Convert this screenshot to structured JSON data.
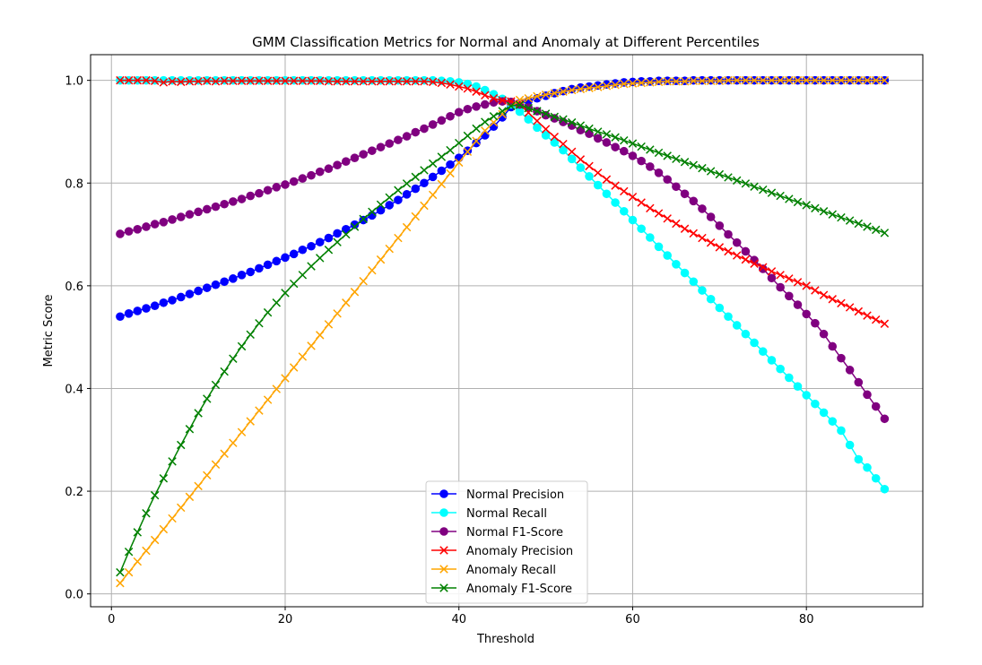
{
  "chart_data": {
    "type": "line",
    "title": "GMM Classification Metrics for Normal and Anomaly at Different Percentiles",
    "xlabel": "Threshold",
    "ylabel": "Metric Score",
    "xlim": [
      -2.4,
      93.4
    ],
    "ylim": [
      -0.025,
      1.05
    ],
    "xticks": [
      0,
      20,
      40,
      60,
      80
    ],
    "yticks": [
      0.0,
      0.2,
      0.4,
      0.6,
      0.8,
      1.0
    ],
    "xtick_labels": [
      "0",
      "20",
      "40",
      "60",
      "80"
    ],
    "ytick_labels": [
      "0.0",
      "0.2",
      "0.4",
      "0.6",
      "0.8",
      "1.0"
    ],
    "grid": true,
    "legend_position": "lower center",
    "x": [
      1,
      2,
      3,
      4,
      5,
      6,
      7,
      8,
      9,
      10,
      11,
      12,
      13,
      14,
      15,
      16,
      17,
      18,
      19,
      20,
      21,
      22,
      23,
      24,
      25,
      26,
      27,
      28,
      29,
      30,
      31,
      32,
      33,
      34,
      35,
      36,
      37,
      38,
      39,
      40,
      41,
      42,
      43,
      44,
      45,
      46,
      47,
      48,
      49,
      50,
      51,
      52,
      53,
      54,
      55,
      56,
      57,
      58,
      59,
      60,
      61,
      62,
      63,
      64,
      65,
      66,
      67,
      68,
      69,
      70,
      71,
      72,
      73,
      74,
      75,
      76,
      77,
      78,
      79,
      80,
      81,
      82,
      83,
      84,
      85,
      86,
      87,
      88,
      89
    ],
    "series": [
      {
        "name": "Normal Precision",
        "color": "#0000ff",
        "marker": "circle",
        "values": [
          0.54,
          0.546,
          0.551,
          0.556,
          0.561,
          0.567,
          0.572,
          0.578,
          0.584,
          0.59,
          0.596,
          0.602,
          0.608,
          0.614,
          0.621,
          0.627,
          0.634,
          0.641,
          0.648,
          0.655,
          0.662,
          0.67,
          0.677,
          0.685,
          0.693,
          0.702,
          0.71,
          0.719,
          0.728,
          0.737,
          0.747,
          0.757,
          0.767,
          0.778,
          0.789,
          0.8,
          0.812,
          0.824,
          0.836,
          0.849,
          0.863,
          0.878,
          0.893,
          0.91,
          0.928,
          0.948,
          0.955,
          0.96,
          0.965,
          0.97,
          0.975,
          0.979,
          0.983,
          0.986,
          0.988,
          0.99,
          0.992,
          0.994,
          0.996,
          0.997,
          0.998,
          0.998,
          0.999,
          0.999,
          0.999,
          0.999,
          1.0,
          1.0,
          1.0,
          1.0,
          1.0,
          1.0,
          1.0,
          1.0,
          1.0,
          1.0,
          1.0,
          1.0,
          1.0,
          1.0,
          1.0,
          1.0,
          1.0,
          1.0,
          1.0,
          1.0,
          1.0,
          1.0,
          1.0
        ]
      },
      {
        "name": "Normal Recall",
        "color": "#00ffff",
        "marker": "circle",
        "values": [
          1.0,
          1.0,
          1.0,
          1.0,
          1.0,
          1.0,
          1.0,
          1.0,
          1.0,
          1.0,
          1.0,
          1.0,
          1.0,
          1.0,
          1.0,
          1.0,
          1.0,
          1.0,
          1.0,
          1.0,
          1.0,
          1.0,
          1.0,
          1.0,
          1.0,
          1.0,
          1.0,
          1.0,
          1.0,
          1.0,
          1.0,
          1.0,
          1.0,
          1.0,
          1.0,
          1.0,
          1.0,
          0.999,
          0.998,
          0.996,
          0.993,
          0.988,
          0.981,
          0.973,
          0.964,
          0.953,
          0.939,
          0.924,
          0.908,
          0.893,
          0.879,
          0.864,
          0.847,
          0.83,
          0.813,
          0.796,
          0.779,
          0.762,
          0.745,
          0.728,
          0.711,
          0.694,
          0.676,
          0.659,
          0.642,
          0.625,
          0.608,
          0.591,
          0.574,
          0.557,
          0.54,
          0.523,
          0.506,
          0.489,
          0.472,
          0.455,
          0.438,
          0.421,
          0.404,
          0.387,
          0.37,
          0.353,
          0.336,
          0.318,
          0.29,
          0.262,
          0.246,
          0.225,
          0.204
        ]
      },
      {
        "name": "Normal F1-Score",
        "color": "#800080",
        "marker": "circle",
        "values": [
          0.701,
          0.706,
          0.71,
          0.715,
          0.72,
          0.724,
          0.729,
          0.734,
          0.739,
          0.744,
          0.749,
          0.754,
          0.759,
          0.764,
          0.769,
          0.775,
          0.78,
          0.786,
          0.792,
          0.797,
          0.803,
          0.809,
          0.815,
          0.822,
          0.828,
          0.835,
          0.842,
          0.849,
          0.856,
          0.863,
          0.87,
          0.877,
          0.884,
          0.891,
          0.899,
          0.906,
          0.914,
          0.922,
          0.93,
          0.938,
          0.944,
          0.949,
          0.953,
          0.957,
          0.959,
          0.958,
          0.953,
          0.947,
          0.94,
          0.932,
          0.926,
          0.919,
          0.912,
          0.903,
          0.896,
          0.887,
          0.879,
          0.87,
          0.862,
          0.853,
          0.843,
          0.832,
          0.82,
          0.807,
          0.793,
          0.779,
          0.765,
          0.75,
          0.734,
          0.717,
          0.7,
          0.684,
          0.667,
          0.65,
          0.633,
          0.615,
          0.597,
          0.58,
          0.563,
          0.545,
          0.527,
          0.506,
          0.482,
          0.459,
          0.436,
          0.412,
          0.388,
          0.365,
          0.341
        ]
      },
      {
        "name": "Anomaly Precision",
        "color": "#ff0000",
        "marker": "x",
        "values": [
          1.0,
          1.0,
          1.0,
          1.0,
          0.999,
          0.996,
          0.998,
          0.997,
          0.998,
          0.998,
          0.999,
          0.998,
          0.999,
          0.999,
          0.999,
          0.999,
          0.999,
          0.999,
          0.999,
          0.999,
          0.999,
          0.999,
          0.999,
          0.999,
          0.998,
          0.998,
          0.998,
          0.998,
          0.998,
          0.998,
          0.998,
          0.998,
          0.998,
          0.998,
          0.998,
          0.998,
          0.997,
          0.995,
          0.992,
          0.988,
          0.984,
          0.978,
          0.971,
          0.965,
          0.961,
          0.959,
          0.954,
          0.937,
          0.921,
          0.905,
          0.89,
          0.876,
          0.861,
          0.846,
          0.833,
          0.82,
          0.807,
          0.795,
          0.784,
          0.773,
          0.762,
          0.751,
          0.741,
          0.731,
          0.721,
          0.711,
          0.702,
          0.693,
          0.684,
          0.675,
          0.667,
          0.659,
          0.651,
          0.643,
          0.636,
          0.628,
          0.621,
          0.614,
          0.607,
          0.6,
          0.591,
          0.582,
          0.574,
          0.566,
          0.558,
          0.55,
          0.542,
          0.534,
          0.526
        ]
      },
      {
        "name": "Anomaly Recall",
        "color": "#ffa500",
        "marker": "x",
        "values": [
          0.021,
          0.042,
          0.063,
          0.084,
          0.105,
          0.126,
          0.147,
          0.168,
          0.189,
          0.21,
          0.231,
          0.252,
          0.273,
          0.294,
          0.315,
          0.336,
          0.357,
          0.378,
          0.399,
          0.42,
          0.441,
          0.462,
          0.483,
          0.504,
          0.525,
          0.546,
          0.567,
          0.588,
          0.609,
          0.63,
          0.651,
          0.672,
          0.693,
          0.714,
          0.735,
          0.756,
          0.777,
          0.798,
          0.819,
          0.84,
          0.861,
          0.882,
          0.902,
          0.918,
          0.934,
          0.95,
          0.962,
          0.965,
          0.969,
          0.972,
          0.975,
          0.978,
          0.981,
          0.983,
          0.985,
          0.987,
          0.989,
          0.991,
          0.993,
          0.994,
          0.995,
          0.996,
          0.997,
          0.998,
          0.998,
          0.998,
          0.999,
          0.999,
          0.999,
          0.999,
          1.0,
          1.0,
          1.0,
          1.0,
          1.0,
          1.0,
          1.0,
          1.0,
          1.0,
          1.0,
          1.0,
          1.0,
          1.0,
          1.0,
          1.0,
          1.0,
          1.0,
          1.0,
          1.0
        ]
      },
      {
        "name": "Anomaly F1-Score",
        "color": "#008000",
        "marker": "x",
        "values": [
          0.042,
          0.082,
          0.12,
          0.157,
          0.192,
          0.225,
          0.258,
          0.29,
          0.321,
          0.352,
          0.38,
          0.407,
          0.433,
          0.458,
          0.482,
          0.505,
          0.527,
          0.548,
          0.567,
          0.586,
          0.604,
          0.621,
          0.638,
          0.654,
          0.67,
          0.685,
          0.7,
          0.715,
          0.73,
          0.744,
          0.758,
          0.772,
          0.786,
          0.799,
          0.812,
          0.825,
          0.838,
          0.851,
          0.864,
          0.878,
          0.892,
          0.906,
          0.919,
          0.93,
          0.94,
          0.95,
          0.952,
          0.946,
          0.94,
          0.935,
          0.929,
          0.924,
          0.918,
          0.912,
          0.906,
          0.9,
          0.895,
          0.889,
          0.883,
          0.877,
          0.871,
          0.865,
          0.859,
          0.853,
          0.847,
          0.841,
          0.835,
          0.829,
          0.823,
          0.817,
          0.811,
          0.805,
          0.799,
          0.793,
          0.787,
          0.781,
          0.775,
          0.769,
          0.763,
          0.757,
          0.751,
          0.745,
          0.739,
          0.733,
          0.727,
          0.721,
          0.715,
          0.709,
          0.703
        ]
      }
    ]
  }
}
